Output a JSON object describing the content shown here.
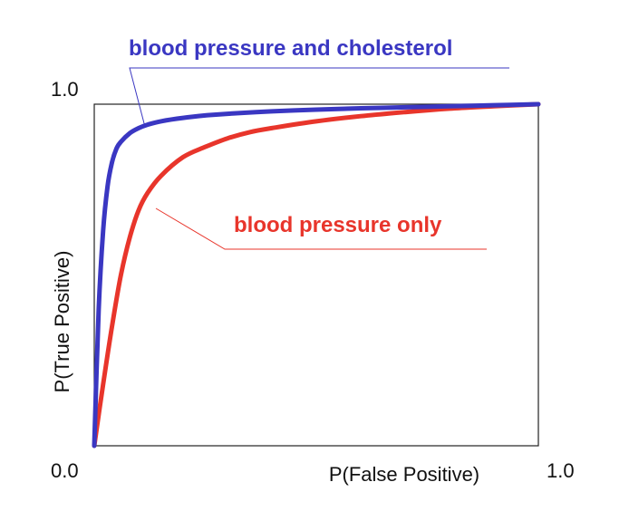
{
  "chart_data": {
    "type": "line",
    "title": "",
    "xlabel": "P(False Positive)",
    "ylabel": "P(True Positive)",
    "xlim": [
      0,
      1
    ],
    "ylim": [
      0,
      1
    ],
    "x_tick_labels": {
      "min": "0.0",
      "max": "1.0"
    },
    "y_tick_labels": {
      "max": "1.0"
    },
    "grid": false,
    "legend": "annotations",
    "series": [
      {
        "name": "blood pressure and cholesterol",
        "color": "#3a37c2",
        "x": [
          0,
          0.01,
          0.02,
          0.03,
          0.04,
          0.05,
          0.06,
          0.08,
          0.1,
          0.12,
          0.15,
          0.2,
          0.25,
          0.3,
          0.4,
          0.5,
          0.6,
          0.7,
          0.8,
          0.9,
          1.0
        ],
        "y": [
          0,
          0.4,
          0.63,
          0.76,
          0.83,
          0.87,
          0.89,
          0.915,
          0.93,
          0.94,
          0.95,
          0.96,
          0.967,
          0.972,
          0.979,
          0.984,
          0.988,
          0.991,
          0.994,
          0.997,
          1.0
        ]
      },
      {
        "name": "blood pressure only",
        "color": "#e8352b",
        "x": [
          0,
          0.02,
          0.04,
          0.06,
          0.08,
          0.1,
          0.12,
          0.15,
          0.2,
          0.25,
          0.3,
          0.35,
          0.4,
          0.5,
          0.6,
          0.7,
          0.8,
          0.9,
          1.0
        ],
        "y": [
          0,
          0.18,
          0.35,
          0.5,
          0.61,
          0.69,
          0.74,
          0.79,
          0.845,
          0.875,
          0.9,
          0.918,
          0.93,
          0.95,
          0.965,
          0.977,
          0.987,
          0.994,
          1.0
        ]
      }
    ],
    "annotations": [
      {
        "text": "blood pressure and cholesterol",
        "series": 0,
        "at_x": 0.12
      },
      {
        "text": "blood pressure only",
        "series": 1,
        "at_x": 0.14
      }
    ]
  }
}
